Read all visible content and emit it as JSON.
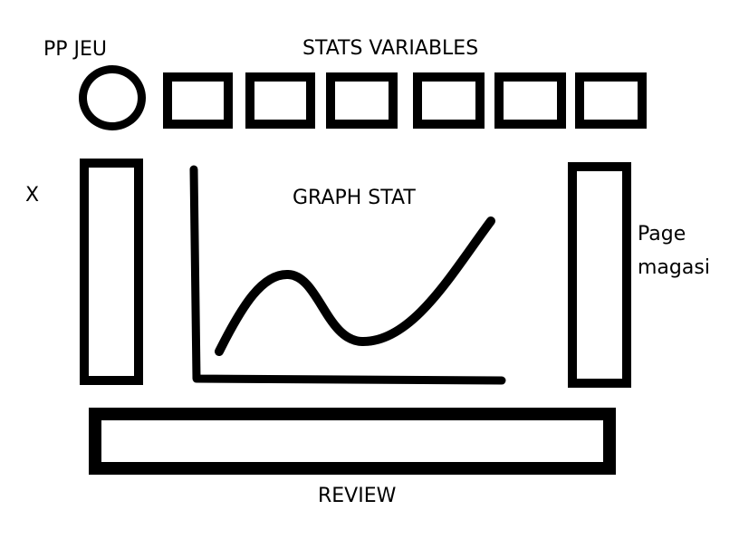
{
  "labels": {
    "pp_jeu": "PP JEU",
    "stats_variables": "STATS VARIABLES",
    "x": "X",
    "graph_stat": "GRAPH STAT",
    "page_magasi_line1": "Page",
    "page_magasi_line2": "magasi",
    "review": "REVIEW"
  },
  "stats_variable_boxes": 6,
  "colors": {
    "ink": "#000000",
    "background": "#ffffff"
  }
}
